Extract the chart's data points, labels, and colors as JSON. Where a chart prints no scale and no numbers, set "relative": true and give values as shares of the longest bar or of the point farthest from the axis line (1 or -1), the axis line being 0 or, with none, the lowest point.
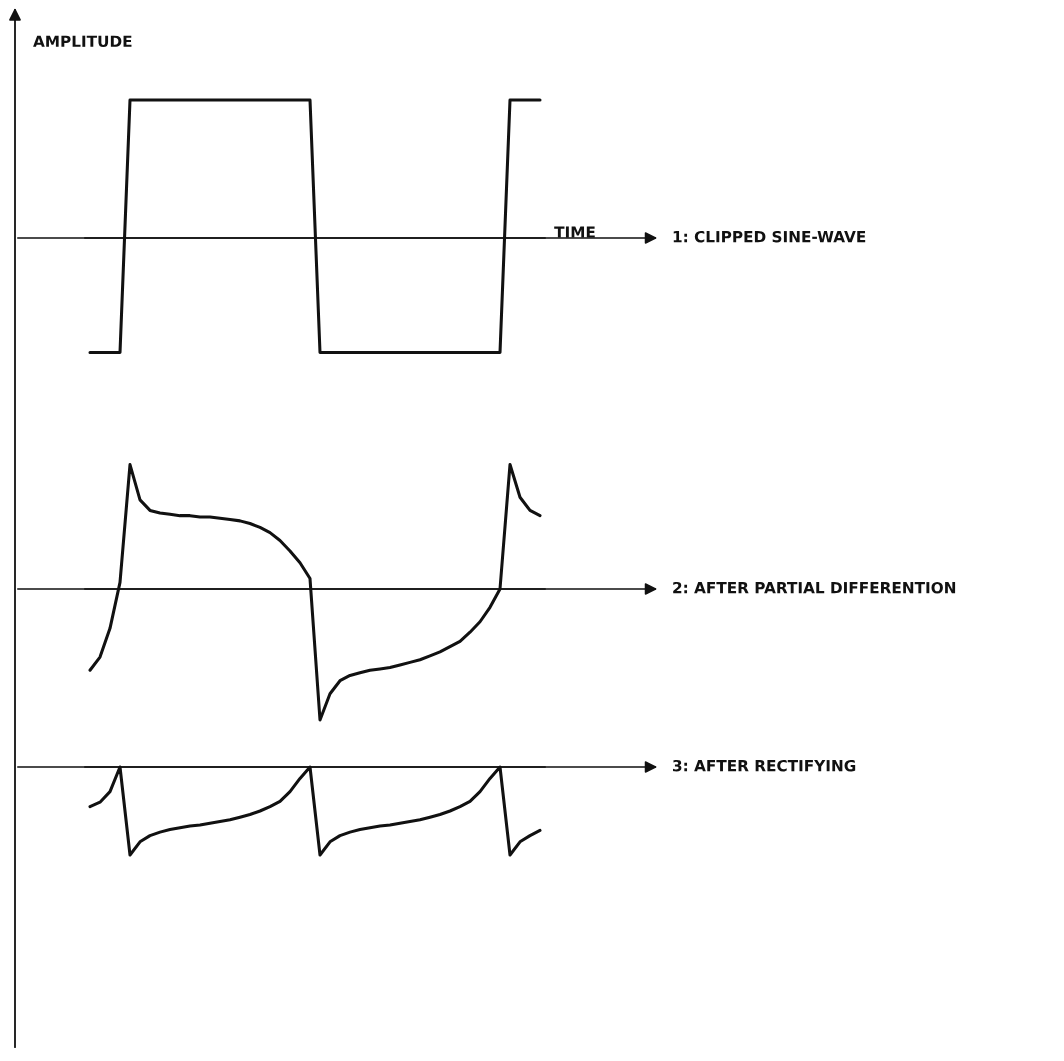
{
  "chart_data": [
    {
      "type": "line",
      "relative": true,
      "ylabel": "AMPLITUDE",
      "xlabel": "TIME",
      "categories": [
        null,
        null,
        null,
        null,
        null,
        null,
        null,
        null,
        null,
        null,
        null,
        null,
        null,
        null,
        null,
        null,
        null,
        null,
        null,
        null,
        null,
        null,
        null,
        null,
        null,
        null,
        null,
        null,
        null,
        null,
        null,
        null,
        null,
        null,
        null,
        null,
        null,
        null,
        null,
        null,
        null,
        null,
        null,
        null,
        null,
        null
      ],
      "series": [
        {
          "name": "1: CLIPPED SINE-WAVE",
          "color": "#111111",
          "values": [
            -0.83,
            -0.83,
            -0.83,
            -0.83,
            1,
            1,
            1,
            1,
            1,
            1,
            1,
            1,
            1,
            1,
            1,
            1,
            1,
            1,
            1,
            1,
            1,
            1,
            1,
            -0.83,
            -0.83,
            -0.83,
            -0.83,
            -0.83,
            -0.83,
            -0.83,
            -0.83,
            -0.83,
            -0.83,
            -0.83,
            -0.83,
            -0.83,
            -0.83,
            -0.83,
            -0.83,
            -0.83,
            -0.83,
            -0.83,
            1,
            1,
            1,
            1
          ]
        }
      ]
    },
    {
      "type": "line",
      "relative": true,
      "categories": [
        null,
        null,
        null,
        null,
        null,
        null,
        null,
        null,
        null,
        null,
        null,
        null,
        null,
        null,
        null,
        null,
        null,
        null,
        null,
        null,
        null,
        null,
        null,
        null,
        null,
        null,
        null,
        null,
        null,
        null,
        null,
        null,
        null,
        null,
        null,
        null,
        null,
        null,
        null,
        null,
        null,
        null,
        null,
        null,
        null,
        null
      ],
      "series": [
        {
          "name": "2: AFTER PARTIAL DIFFERENTION",
          "color": "#111111",
          "values": [
            -0.62,
            -0.52,
            -0.3,
            0.05,
            0.95,
            0.68,
            0.6,
            0.58,
            0.57,
            0.56,
            0.56,
            0.55,
            0.55,
            0.54,
            0.53,
            0.52,
            0.5,
            0.47,
            0.43,
            0.37,
            0.29,
            0.2,
            0.08,
            -1,
            -0.8,
            -0.7,
            -0.66,
            -0.64,
            -0.62,
            -0.61,
            -0.6,
            -0.58,
            -0.56,
            -0.54,
            -0.51,
            -0.48,
            -0.44,
            -0.4,
            -0.33,
            -0.25,
            -0.14,
            0,
            0.95,
            0.7,
            0.6,
            0.56
          ]
        }
      ]
    },
    {
      "type": "line",
      "relative": true,
      "categories": [
        null,
        null,
        null,
        null,
        null,
        null,
        null,
        null,
        null,
        null,
        null,
        null,
        null,
        null,
        null,
        null,
        null,
        null,
        null,
        null,
        null,
        null,
        null,
        null,
        null,
        null,
        null,
        null,
        null,
        null,
        null,
        null,
        null,
        null,
        null,
        null,
        null,
        null,
        null,
        null,
        null,
        null,
        null,
        null,
        null,
        null
      ],
      "series": [
        {
          "name": "3: AFTER RECTIFYING",
          "color": "#111111",
          "values": [
            -0.45,
            -0.4,
            -0.28,
            0,
            -1,
            -0.85,
            -0.78,
            -0.74,
            -0.71,
            -0.69,
            -0.67,
            -0.66,
            -0.64,
            -0.62,
            -0.6,
            -0.57,
            -0.54,
            -0.5,
            -0.45,
            -0.39,
            -0.28,
            -0.13,
            0,
            -1,
            -0.85,
            -0.78,
            -0.74,
            -0.71,
            -0.69,
            -0.67,
            -0.66,
            -0.64,
            -0.62,
            -0.6,
            -0.57,
            -0.54,
            -0.5,
            -0.45,
            -0.39,
            -0.28,
            -0.13,
            0,
            -1,
            -0.85,
            -0.78,
            -0.72
          ]
        }
      ]
    }
  ]
}
